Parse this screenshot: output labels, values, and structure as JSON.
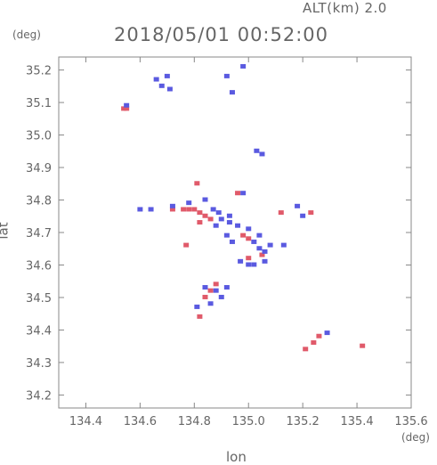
{
  "header": {
    "altitude_label": "ALT(km) 2.0",
    "timestamp": "2018/05/01 00:52:00"
  },
  "axes": {
    "y_unit": "(deg)",
    "x_unit": "(deg)",
    "xlabel": "lon",
    "ylabel": "lat"
  },
  "colors": {
    "positive": "#e05a6a",
    "negative": "#5a5ae0",
    "axis": "#888888"
  },
  "chart_data": {
    "type": "scatter",
    "title": "2018/05/01 00:52:00",
    "subtitle": "ALT(km) 2.0",
    "xlabel": "lon",
    "ylabel": "lat",
    "xlim": [
      134.3,
      135.6
    ],
    "ylim": [
      34.16,
      35.24
    ],
    "xticks": [
      134.4,
      134.6,
      134.8,
      135.0,
      135.2,
      135.4,
      135.6
    ],
    "xtick_labels": [
      "134.4",
      "134.6",
      "134.8",
      "135.0",
      "135.2",
      "135.4",
      "135.6"
    ],
    "yticks": [
      34.2,
      34.3,
      34.4,
      34.5,
      34.6,
      34.7,
      34.8,
      34.9,
      35.0,
      35.1,
      35.2
    ],
    "ytick_labels": [
      "34.2",
      "34.3",
      "34.4",
      "34.5",
      "34.6",
      "34.7",
      "34.8",
      "34.9",
      "35.0",
      "35.1",
      "35.2"
    ],
    "grid": false,
    "series": [
      {
        "color": "#e05a6a",
        "points": [
          [
            134.54,
            35.08
          ],
          [
            134.55,
            35.08
          ],
          [
            134.81,
            34.85
          ],
          [
            134.8,
            34.77
          ],
          [
            134.82,
            34.76
          ],
          [
            134.84,
            34.75
          ],
          [
            134.82,
            34.73
          ],
          [
            134.86,
            34.74
          ],
          [
            134.78,
            34.77
          ],
          [
            134.76,
            34.77
          ],
          [
            134.77,
            34.66
          ],
          [
            134.96,
            34.82
          ],
          [
            134.98,
            34.69
          ],
          [
            135.0,
            34.62
          ],
          [
            135.05,
            34.63
          ],
          [
            135.12,
            34.76
          ],
          [
            135.23,
            34.76
          ],
          [
            134.84,
            34.5
          ],
          [
            134.86,
            34.52
          ],
          [
            134.82,
            34.44
          ],
          [
            135.21,
            34.34
          ],
          [
            135.24,
            34.36
          ],
          [
            135.26,
            34.38
          ],
          [
            135.42,
            34.35
          ],
          [
            135.0,
            34.68
          ],
          [
            134.88,
            34.54
          ],
          [
            134.72,
            34.77
          ]
        ]
      },
      {
        "color": "#5a5ae0",
        "points": [
          [
            134.66,
            35.17
          ],
          [
            134.7,
            35.18
          ],
          [
            134.68,
            35.15
          ],
          [
            134.71,
            35.14
          ],
          [
            134.55,
            35.09
          ],
          [
            134.92,
            35.18
          ],
          [
            134.98,
            35.21
          ],
          [
            134.94,
            35.13
          ],
          [
            135.03,
            34.95
          ],
          [
            135.05,
            34.94
          ],
          [
            134.6,
            34.77
          ],
          [
            134.64,
            34.77
          ],
          [
            134.72,
            34.78
          ],
          [
            134.78,
            34.79
          ],
          [
            134.84,
            34.8
          ],
          [
            134.87,
            34.77
          ],
          [
            134.9,
            34.74
          ],
          [
            134.93,
            34.73
          ],
          [
            134.96,
            34.72
          ],
          [
            134.88,
            34.72
          ],
          [
            134.92,
            34.69
          ],
          [
            134.94,
            34.67
          ],
          [
            135.02,
            34.67
          ],
          [
            135.04,
            34.65
          ],
          [
            135.06,
            34.64
          ],
          [
            135.08,
            34.66
          ],
          [
            135.02,
            34.6
          ],
          [
            135.06,
            34.61
          ],
          [
            134.97,
            34.61
          ],
          [
            135.0,
            34.6
          ],
          [
            135.13,
            34.66
          ],
          [
            135.18,
            34.78
          ],
          [
            135.2,
            34.75
          ],
          [
            134.84,
            34.53
          ],
          [
            134.88,
            34.52
          ],
          [
            134.9,
            34.5
          ],
          [
            134.92,
            34.53
          ],
          [
            134.86,
            34.48
          ],
          [
            134.81,
            34.47
          ],
          [
            135.29,
            34.39
          ],
          [
            134.98,
            34.82
          ],
          [
            134.93,
            34.75
          ],
          [
            135.04,
            34.69
          ],
          [
            135.0,
            34.71
          ],
          [
            134.89,
            34.76
          ]
        ]
      }
    ]
  }
}
